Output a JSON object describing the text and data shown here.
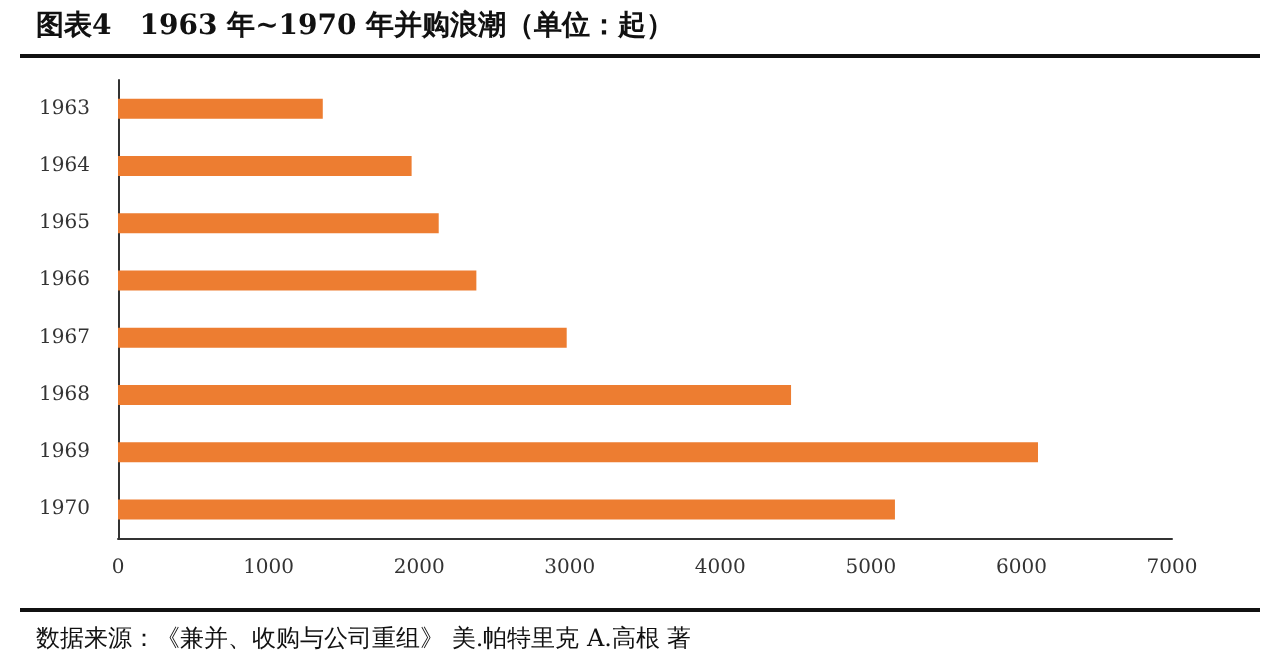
{
  "chart_data": {
    "type": "bar",
    "orientation": "horizontal",
    "title": "图表4　1963 年~1970 年并购浪潮（单位：起）",
    "categories": [
      "1963",
      "1964",
      "1965",
      "1966",
      "1967",
      "1968",
      "1969",
      "1970"
    ],
    "values": [
      1360,
      1950,
      2130,
      2380,
      2980,
      4470,
      6110,
      5160
    ],
    "color": "#ed7d31",
    "xlim": [
      0,
      7000
    ],
    "xticks": [
      0,
      1000,
      2000,
      3000,
      4000,
      5000,
      6000,
      7000
    ],
    "grid": false,
    "annotations": [
      "数据来源：《兼并、收购与公司重组》 美.帕特里克 A.高根 著"
    ]
  }
}
